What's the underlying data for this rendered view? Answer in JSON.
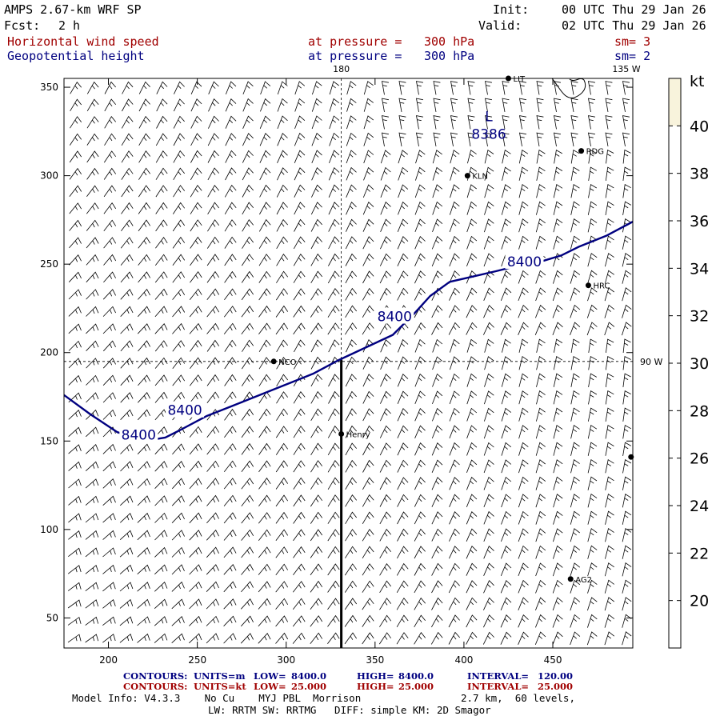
{
  "header": {
    "model_title": "AMPS 2.67-km WRF SP",
    "fcst_label": "Fcst:",
    "fcst_value": "2 h",
    "init_label": "Init:",
    "init_value": "00 UTC Thu 29 Jan 26",
    "valid_label": "Valid:",
    "valid_value": "02 UTC Thu 29 Jan 26"
  },
  "fields": [
    {
      "name": "Horizontal wind speed",
      "level_label": "at pressure =",
      "level_value": "300 hPa",
      "smooth": "sm= 3",
      "color": "#a00000"
    },
    {
      "name": "Geopotential height",
      "level_label": "at pressure =",
      "level_value": "300 hPa",
      "smooth": "sm= 2",
      "color": "#000080"
    }
  ],
  "map": {
    "x_ticks": [
      "200",
      "250",
      "300",
      "350",
      "400",
      "450"
    ],
    "y_ticks": [
      "350",
      "300",
      "250",
      "200",
      "150",
      "100",
      "50"
    ],
    "x_range": [
      175,
      495
    ],
    "y_range": [
      33,
      355
    ],
    "meridian_180_label": "180",
    "meridian_135w_label": "135 W",
    "meridian_90w_label": "90 W",
    "meridian_180_x": 331,
    "parallel_y": 195,
    "stations": [
      {
        "id": "LIT",
        "label": "LIT",
        "x": 425,
        "y": 355
      },
      {
        "id": "RDG",
        "label": "RDG",
        "x": 466,
        "y": 314
      },
      {
        "id": "KLN",
        "label": "KLN",
        "x": 402,
        "y": 300
      },
      {
        "id": "HRC",
        "label": "HRC",
        "x": 470,
        "y": 238
      },
      {
        "id": "NCO",
        "label": "NCO",
        "x": 293,
        "y": 195
      },
      {
        "id": "Henry",
        "label": "Henry",
        "x": 331,
        "y": 154
      },
      {
        "id": "edge",
        "label": "",
        "x": 494,
        "y": 141
      },
      {
        "id": "AG2",
        "label": "AG2",
        "x": 460,
        "y": 72
      }
    ],
    "low_center": {
      "symbol": "L",
      "value": "8386",
      "x": 414,
      "y": 328
    },
    "contour_labels": [
      {
        "text": "8400",
        "x": 217,
        "y": 153
      },
      {
        "text": "8400",
        "x": 243,
        "y": 167
      },
      {
        "text": "8400",
        "x": 361,
        "y": 220
      },
      {
        "text": "8400",
        "x": 434,
        "y": 251
      }
    ],
    "contour_8400": [
      [
        175,
        176
      ],
      [
        190,
        165
      ],
      [
        205,
        155
      ],
      [
        220,
        150
      ],
      [
        232,
        152
      ],
      [
        240,
        156
      ],
      [
        255,
        164
      ],
      [
        270,
        170
      ],
      [
        295,
        180
      ],
      [
        315,
        188
      ],
      [
        330,
        196
      ],
      [
        345,
        203
      ],
      [
        360,
        210
      ],
      [
        372,
        222
      ],
      [
        381,
        232
      ],
      [
        392,
        240
      ],
      [
        405,
        243
      ],
      [
        418,
        246
      ],
      [
        430,
        249
      ],
      [
        445,
        252
      ],
      [
        455,
        255
      ],
      [
        465,
        260
      ],
      [
        480,
        266
      ],
      [
        495,
        274
      ]
    ],
    "transect_x": 331,
    "transect_y": [
      33,
      196
    ],
    "wind_color": "#000000",
    "contour_color": "#000080"
  },
  "colorbar": {
    "unit": "kt",
    "ticks": [
      "40",
      "38",
      "36",
      "34",
      "32",
      "30",
      "28",
      "26",
      "24",
      "22",
      "20"
    ],
    "range": [
      18,
      42
    ],
    "fill_range": [
      40,
      42
    ],
    "fill_color": "#f8f3dc"
  },
  "footer": {
    "contour_line1": {
      "a": "CONTOURS:",
      "b": "UNITS=m",
      "c": "LOW=",
      "d": "8400.0",
      "e": "HIGH=",
      "f": "8400.0",
      "g": "INTERVAL=",
      "h": "120.00"
    },
    "contour_line2": {
      "a": "CONTOURS:",
      "b": "UNITS=kt",
      "c": "LOW=",
      "d": "25.000",
      "e": "HIGH=",
      "f": "25.000",
      "g": "INTERVAL=",
      "h": "25.000"
    },
    "model_info": "Model Info: V4.3.3    No Cu    MYJ PBL  Morrison",
    "model_res": "2.7 km,  60 levels,",
    "physics": "LW: RRTM SW: RRTMG   DIFF: simple KM: 2D Smagor"
  }
}
